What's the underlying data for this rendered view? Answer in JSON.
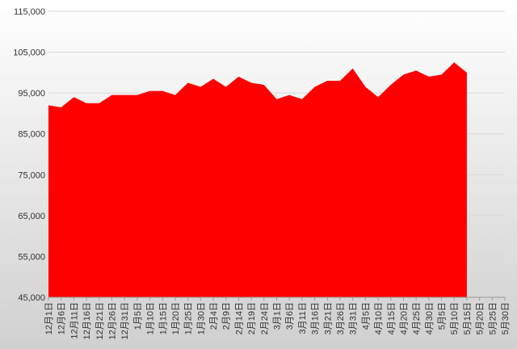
{
  "chart_data": {
    "type": "area",
    "categories": [
      "12月1日",
      "12月6日",
      "12月11日",
      "12月16日",
      "12月21日",
      "12月26日",
      "12月31日",
      "1月5日",
      "1月10日",
      "1月15日",
      "1月20日",
      "1月25日",
      "1月30日",
      "2月4日",
      "2月9日",
      "2月14日",
      "2月19日",
      "2月24日",
      "3月1日",
      "3月6日",
      "3月11日",
      "3月16日",
      "3月21日",
      "3月26日",
      "3月31日",
      "4月5日",
      "4月10日",
      "4月15日",
      "4月20日",
      "4月25日",
      "4月30日",
      "5月5日",
      "5月10日",
      "5月15日",
      "5月20日",
      "5月25日",
      "5月30日"
    ],
    "values": [
      92000,
      91500,
      94000,
      92500,
      92500,
      94500,
      94500,
      94500,
      95500,
      95500,
      94500,
      97500,
      96500,
      98500,
      96500,
      99000,
      97500,
      97000,
      93500,
      94500,
      93500,
      96500,
      98000,
      98000,
      101000,
      96500,
      94000,
      97000,
      99500,
      100500,
      99000,
      99500,
      102500,
      100000,
      null,
      null,
      null
    ],
    "color": "#ff0000",
    "ylim": [
      45000,
      115000
    ],
    "yticks": [
      {
        "value": 45000,
        "label": "45,000"
      },
      {
        "value": 55000,
        "label": "55,000"
      },
      {
        "value": 65000,
        "label": "65,000"
      },
      {
        "value": 75000,
        "label": "75,000"
      },
      {
        "value": 85000,
        "label": "85,000"
      },
      {
        "value": 95000,
        "label": "95,000"
      },
      {
        "value": 105000,
        "label": "105,000"
      },
      {
        "value": 115000,
        "label": "115,000"
      }
    ],
    "grid": true
  }
}
